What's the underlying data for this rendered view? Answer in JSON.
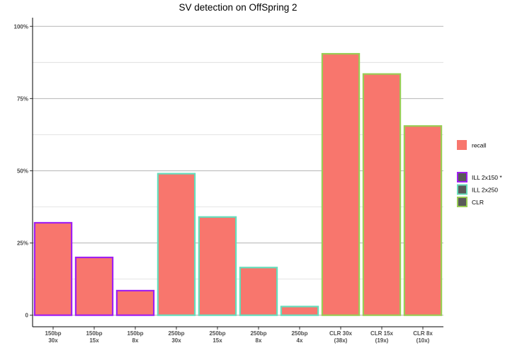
{
  "chart_data": {
    "type": "bar",
    "title": "SV detection on OffSpring 2",
    "xlabel": "",
    "ylabel": "",
    "ylim": [
      -0.04,
      1.03
    ],
    "y_ticks": [
      0,
      0.25,
      0.5,
      0.75,
      1.0
    ],
    "y_tick_labels": [
      "0",
      "25%",
      "50%",
      "75%",
      "100%"
    ],
    "grid": true,
    "categories": [
      [
        "150bp",
        "30x"
      ],
      [
        "150bp",
        "15x"
      ],
      [
        "150bp",
        "8x"
      ],
      [
        "250bp",
        "30x"
      ],
      [
        "250bp",
        "15x"
      ],
      [
        "250bp",
        "8x"
      ],
      [
        "250bp",
        "4x"
      ],
      [
        "CLR 30x",
        "(38x)"
      ],
      [
        "CLR 15x",
        "(19x)"
      ],
      [
        "CLR 8x",
        "(10x)"
      ]
    ],
    "series": [
      {
        "name": "recall",
        "fill": "#F8766D",
        "values": [
          0.32,
          0.2,
          0.085,
          0.49,
          0.34,
          0.165,
          0.03,
          0.905,
          0.835,
          0.655
        ],
        "group": [
          "ILL 2x150 *",
          "ILL 2x150 *",
          "ILL 2x150 *",
          "ILL 2x250",
          "ILL 2x250",
          "ILL 2x250",
          "ILL 2x250",
          "CLR",
          "CLR",
          "CLR"
        ]
      }
    ],
    "legend": {
      "placement": "right",
      "fill_items": [
        {
          "label": "recall",
          "color": "#F8766D"
        }
      ],
      "outline_items": [
        {
          "label": "ILL 2x150 *",
          "color": "#A020F0"
        },
        {
          "label": "ILL 2x250",
          "color": "#66DDBB"
        },
        {
          "label": "CLR",
          "color": "#99CC55"
        }
      ],
      "outline_swatch_fill": "#595959"
    }
  }
}
